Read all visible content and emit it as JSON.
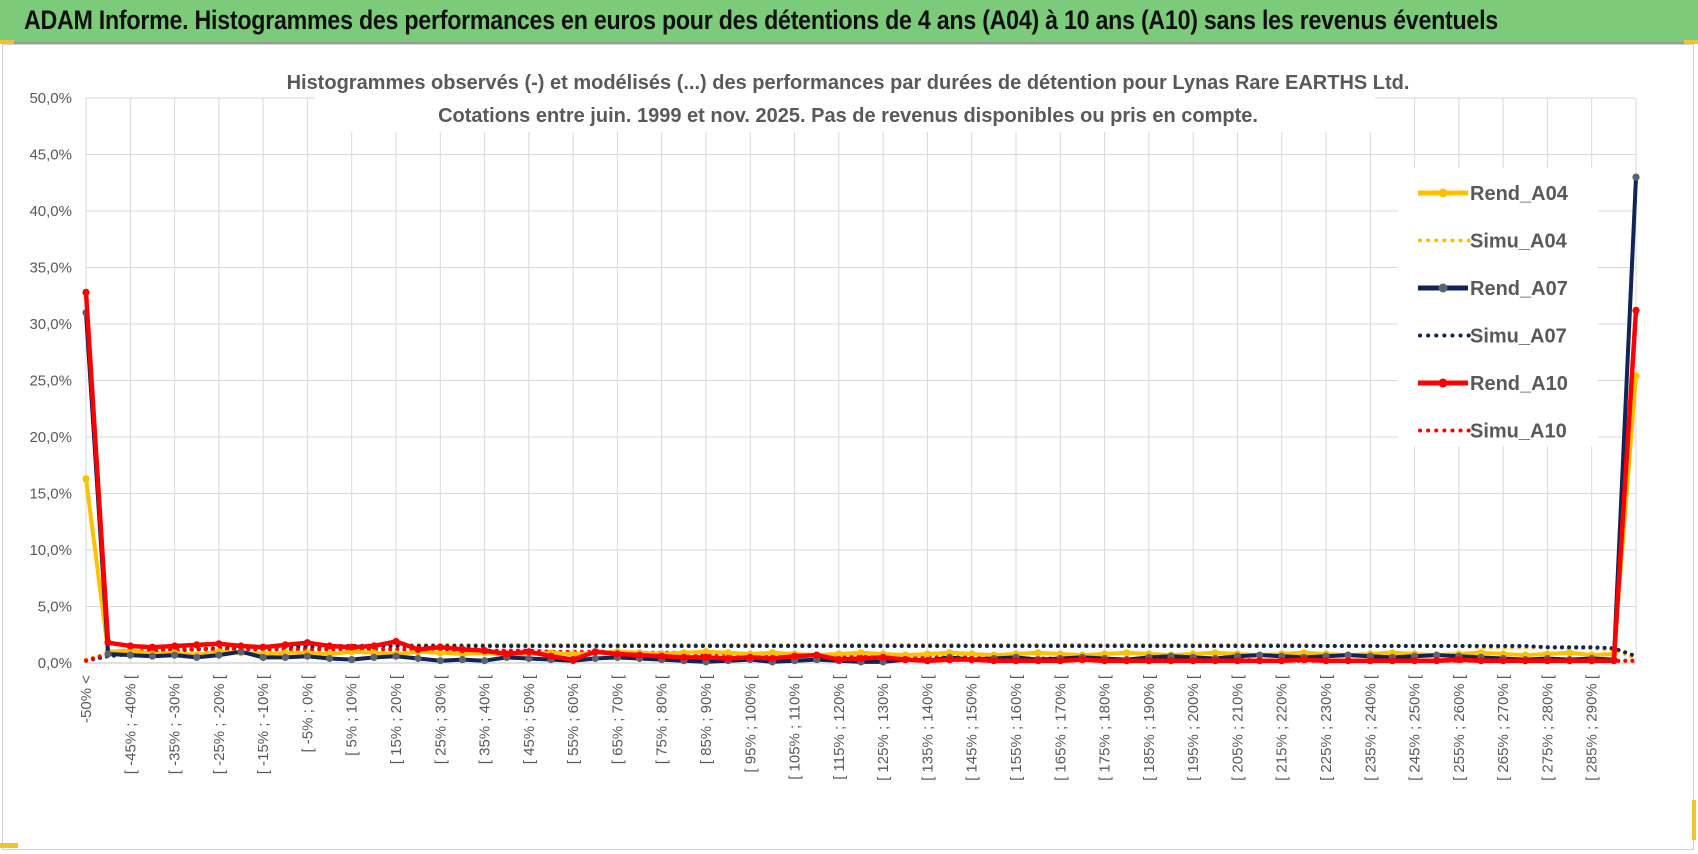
{
  "banner": {
    "title": "ADAM Informe. Histogrammes des performances en euros pour des détentions de 4 ans (A04) à 10 ans (A10) sans les revenus éventuels",
    "color": "#7ccb7a"
  },
  "chart_data": {
    "type": "line",
    "title": [
      "Histogrammes observés (-) et modélisés (...) des performances par durées de détention pour Lynas Rare EARTHS Ltd.",
      "Cotations entre juin. 1999 et nov. 2025. Pas de revenus disponibles ou pris en compte."
    ],
    "xlabel": "",
    "ylabel": "",
    "ylim": [
      0,
      50
    ],
    "y_ticks": [
      "0,0%",
      "5,0%",
      "10,0%",
      "15,0%",
      "20,0%",
      "25,0%",
      "30,0%",
      "35,0%",
      "40,0%",
      "45,0%",
      "50,0%"
    ],
    "grid": true,
    "legend_position": "right",
    "x_tick_labels": [
      "-50% <",
      "[ -45% ; -40% [",
      "[ -35% ; -30% [",
      "[ -25% ; -20% [",
      "[ -15% ; -10% [",
      "[ -5% ; 0% [",
      "[ 5% ; 10% [",
      "[ 15% ; 20% [",
      "[ 25% ; 30% [",
      "[ 35% ; 40% [",
      "[ 45% ; 50% [",
      "[ 55% ; 60% [",
      "[ 65% ; 70% [",
      "[ 75% ; 80% [",
      "[ 85% ; 90% [",
      "[ 95% ; 100% [",
      "[ 105% ; 110% [",
      "[ 115% ; 120% [",
      "[ 125% ; 130% [",
      "[ 135% ; 140% [",
      "[ 145% ; 150% [",
      "[ 155% ; 160% [",
      "[ 165% ; 170% [",
      "[ 175% ; 180% [",
      "[ 185% ; 190% [",
      "[ 195% ; 200% [",
      "[ 205% ; 210% [",
      "[ 215% ; 220% [",
      "[ 225% ; 230% [",
      "[ 235% ; 240% [",
      "[ 245% ; 250% [",
      "[ 255% ; 260% [",
      "[ 265% ; 270% [",
      "[ 275% ; 280% [",
      "[ 285% ; 290% ["
    ],
    "series": [
      {
        "name": "Rend_A04",
        "style": "solid",
        "color": "#ffc000",
        "values": [
          16.3,
          1.0,
          1.1,
          0.8,
          0.9,
          0.7,
          1.0,
          0.9,
          0.8,
          0.9,
          0.9,
          0.8,
          1.0,
          0.9,
          0.8,
          1.0,
          0.9,
          0.8,
          0.9,
          0.7,
          0.8,
          0.9,
          0.8,
          0.9,
          1.0,
          0.9,
          0.8,
          0.9,
          1.0,
          0.9,
          0.8,
          0.9,
          0.8,
          0.7,
          0.8,
          0.9,
          0.8,
          0.7,
          0.8,
          0.9,
          0.8,
          0.7,
          0.8,
          0.9,
          0.8,
          0.7,
          0.8,
          0.9,
          0.8,
          0.7,
          0.8,
          0.9,
          0.8,
          0.7,
          0.8,
          0.9,
          0.8,
          0.7,
          0.8,
          0.9,
          0.8,
          0.7,
          0.8,
          0.9,
          0.8,
          0.7,
          0.8,
          0.9,
          0.7,
          0.8,
          25.4
        ]
      },
      {
        "name": "Simu_A04",
        "style": "dotted",
        "color": "#ffc000",
        "values": [
          0.3,
          0.8,
          1.0,
          1.1,
          1.2,
          1.3,
          1.3,
          1.4,
          1.4,
          1.5,
          1.5,
          1.5,
          1.5,
          1.6,
          1.6,
          1.6,
          1.6,
          1.6,
          1.6,
          1.6,
          1.6,
          1.6,
          1.6,
          1.6,
          1.6,
          1.6,
          1.6,
          1.6,
          1.6,
          1.6,
          1.6,
          1.6,
          1.6,
          1.6,
          1.6,
          1.6,
          1.6,
          1.6,
          1.6,
          1.6,
          1.6,
          1.6,
          1.6,
          1.6,
          1.6,
          1.6,
          1.6,
          1.6,
          1.6,
          1.6,
          1.6,
          1.6,
          1.6,
          1.6,
          1.6,
          1.6,
          1.5,
          1.5,
          1.5,
          1.5,
          1.5,
          1.5,
          1.5,
          1.4,
          1.4,
          1.4,
          1.4,
          1.3,
          1.3,
          1.2,
          0.4
        ]
      },
      {
        "name": "Rend_A07",
        "style": "solid",
        "color": "#0f2557",
        "values": [
          31.0,
          0.8,
          0.7,
          0.6,
          0.7,
          0.5,
          0.7,
          1.0,
          0.5,
          0.5,
          0.6,
          0.4,
          0.3,
          0.5,
          0.6,
          0.4,
          0.2,
          0.3,
          0.2,
          0.5,
          0.4,
          0.3,
          0.2,
          0.4,
          0.5,
          0.4,
          0.3,
          0.2,
          0.1,
          0.2,
          0.3,
          0.1,
          0.2,
          0.3,
          0.2,
          0.1,
          0.1,
          0.3,
          0.2,
          0.5,
          0.3,
          0.4,
          0.5,
          0.3,
          0.4,
          0.5,
          0.4,
          0.3,
          0.5,
          0.6,
          0.5,
          0.4,
          0.6,
          0.7,
          0.6,
          0.5,
          0.6,
          0.7,
          0.6,
          0.5,
          0.6,
          0.7,
          0.6,
          0.5,
          0.4,
          0.3,
          0.4,
          0.3,
          0.4,
          0.3,
          43.0
        ]
      },
      {
        "name": "Simu_A07",
        "style": "dotted",
        "color": "#0f2557",
        "values": [
          0.2,
          0.6,
          0.8,
          1.0,
          1.1,
          1.2,
          1.3,
          1.3,
          1.4,
          1.4,
          1.4,
          1.5,
          1.5,
          1.5,
          1.5,
          1.5,
          1.5,
          1.5,
          1.5,
          1.5,
          1.5,
          1.5,
          1.5,
          1.5,
          1.5,
          1.5,
          1.5,
          1.5,
          1.5,
          1.5,
          1.5,
          1.5,
          1.5,
          1.5,
          1.5,
          1.5,
          1.5,
          1.5,
          1.5,
          1.5,
          1.5,
          1.5,
          1.5,
          1.5,
          1.5,
          1.5,
          1.5,
          1.5,
          1.5,
          1.5,
          1.5,
          1.5,
          1.5,
          1.5,
          1.5,
          1.5,
          1.5,
          1.5,
          1.5,
          1.5,
          1.5,
          1.5,
          1.5,
          1.5,
          1.5,
          1.5,
          1.4,
          1.4,
          1.4,
          1.3,
          0.6
        ]
      },
      {
        "name": "Rend_A10",
        "style": "solid",
        "color": "#ff0000",
        "values": [
          32.8,
          1.8,
          1.5,
          1.4,
          1.5,
          1.6,
          1.7,
          1.5,
          1.4,
          1.6,
          1.8,
          1.5,
          1.4,
          1.5,
          1.9,
          1.2,
          1.4,
          1.2,
          1.1,
          0.8,
          1.0,
          0.6,
          0.3,
          1.0,
          0.8,
          0.7,
          0.6,
          0.5,
          0.5,
          0.4,
          0.5,
          0.4,
          0.6,
          0.7,
          0.3,
          0.4,
          0.5,
          0.3,
          0.2,
          0.3,
          0.3,
          0.2,
          0.2,
          0.2,
          0.2,
          0.3,
          0.2,
          0.2,
          0.2,
          0.2,
          0.2,
          0.2,
          0.2,
          0.2,
          0.2,
          0.3,
          0.2,
          0.2,
          0.2,
          0.2,
          0.2,
          0.2,
          0.3,
          0.2,
          0.2,
          0.2,
          0.2,
          0.2,
          0.2,
          0.2,
          31.2
        ]
      },
      {
        "name": "Simu_A10",
        "style": "dotted",
        "color": "#ff0000",
        "values": [
          0.2,
          0.8,
          1.0,
          1.1,
          1.2,
          1.2,
          1.2,
          1.2,
          1.2,
          1.2,
          1.2,
          1.2,
          1.2,
          1.2,
          1.2,
          1.2,
          1.2,
          1.1,
          1.1,
          1.1,
          1.1,
          1.0,
          1.0,
          1.0,
          1.0,
          0.9,
          0.9,
          0.9,
          0.8,
          0.8,
          0.8,
          0.7,
          0.7,
          0.7,
          0.6,
          0.6,
          0.6,
          0.5,
          0.5,
          0.5,
          0.5,
          0.4,
          0.4,
          0.4,
          0.4,
          0.4,
          0.3,
          0.3,
          0.3,
          0.3,
          0.3,
          0.3,
          0.3,
          0.2,
          0.2,
          0.2,
          0.2,
          0.2,
          0.2,
          0.2,
          0.2,
          0.2,
          0.2,
          0.2,
          0.2,
          0.2,
          0.2,
          0.2,
          0.2,
          0.2,
          0.2
        ]
      }
    ]
  }
}
